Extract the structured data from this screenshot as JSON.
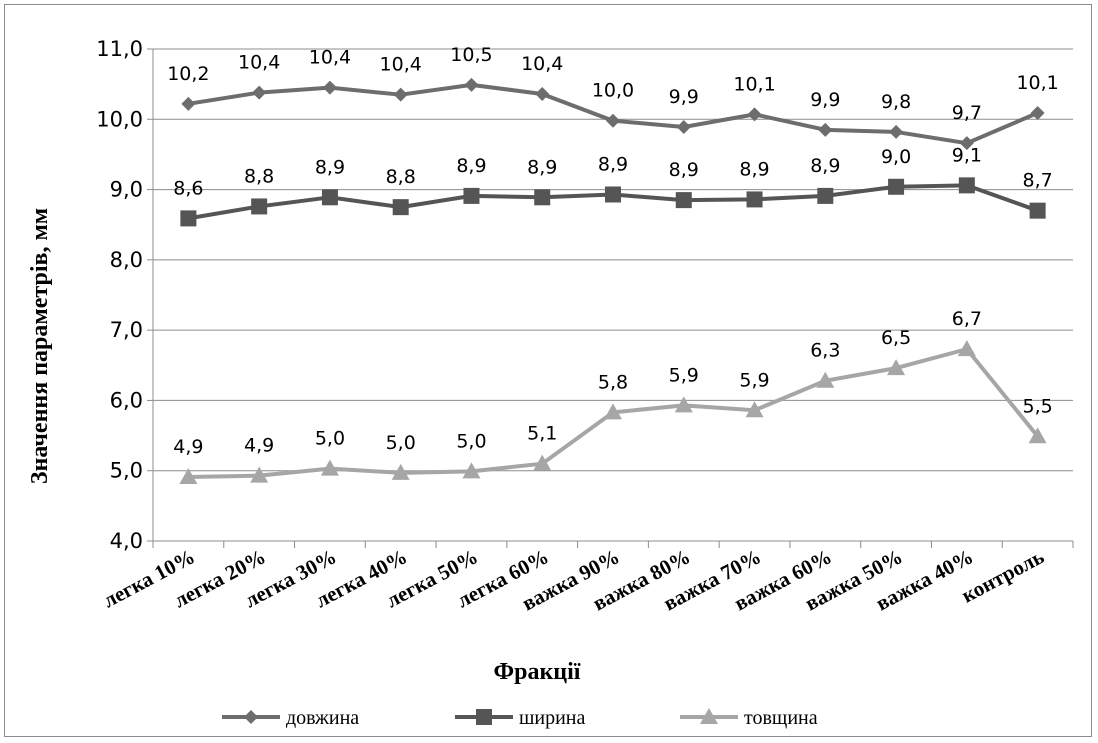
{
  "chart_data": {
    "type": "line",
    "title": "",
    "xlabel": "Фракції",
    "ylabel": "Значення параметрів, мм",
    "ylim": [
      4.0,
      11.0
    ],
    "ytick_labels": [
      "4,0",
      "5,0",
      "6,0",
      "7,0",
      "8,0",
      "9,0",
      "10,0",
      "11,0"
    ],
    "grid": true,
    "legend_position": "bottom",
    "categories": [
      "легка 10%",
      "легка 20%",
      "легка 30%",
      "легка 40%",
      "легка 50%",
      "легка 60%",
      "важка 90%",
      "важка 80%",
      "важка 70%",
      "важка 60%",
      "важка 50%",
      "важка 40%",
      "контроль"
    ],
    "series": [
      {
        "name": "довжина",
        "color": "#6d6d6d",
        "marker": "diamond",
        "values": [
          10.22,
          10.38,
          10.45,
          10.35,
          10.49,
          10.36,
          9.98,
          9.89,
          10.07,
          9.85,
          9.82,
          9.66,
          10.09
        ],
        "labels": [
          "10,2",
          "10,4",
          "10,4",
          "10,4",
          "10,5",
          "10,4",
          "10,0",
          "9,9",
          "10,1",
          "9,9",
          "9,8",
          "9,7",
          "10,1"
        ]
      },
      {
        "name": "ширина",
        "color": "#555555",
        "marker": "square",
        "values": [
          8.59,
          8.76,
          8.89,
          8.75,
          8.91,
          8.89,
          8.93,
          8.85,
          8.86,
          8.91,
          9.04,
          9.06,
          8.7
        ],
        "labels": [
          "8,6",
          "8,8",
          "8,9",
          "8,8",
          "8,9",
          "8,9",
          "8,9",
          "8,9",
          "8,9",
          "8,9",
          "9,0",
          "9,1",
          "8,7"
        ]
      },
      {
        "name": "товщина",
        "color": "#a6a6a6",
        "marker": "triangle",
        "values": [
          4.91,
          4.93,
          5.03,
          4.97,
          4.99,
          5.1,
          5.83,
          5.93,
          5.86,
          6.28,
          6.46,
          6.73,
          5.49
        ],
        "labels": [
          "4,9",
          "4,9",
          "5,0",
          "5,0",
          "5,0",
          "5,1",
          "5,8",
          "5,9",
          "5,9",
          "6,3",
          "6,5",
          "6,7",
          "5,5"
        ]
      }
    ]
  }
}
